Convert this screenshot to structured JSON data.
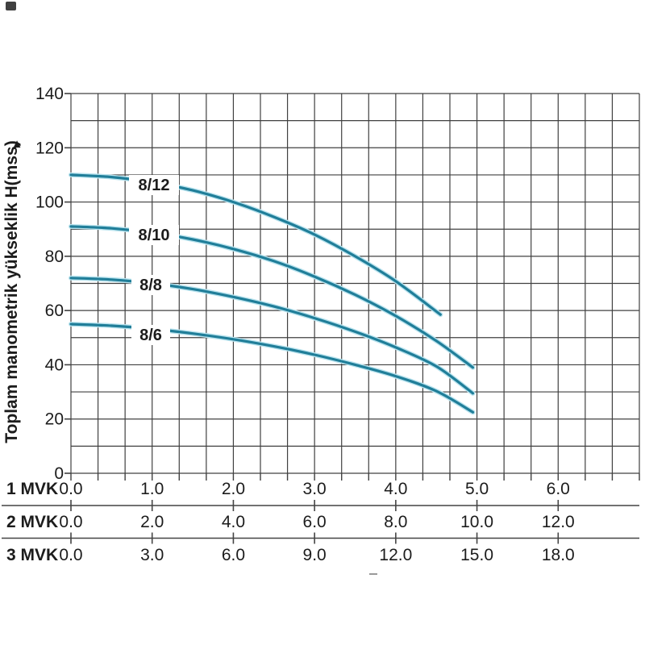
{
  "colors": {
    "background": "#ffffff",
    "grid": "#404040",
    "text": "#1c1c1c",
    "curve": "#207e99",
    "curve_halo": "#b9e3ee",
    "separator": "#444444"
  },
  "y_axis": {
    "title": "Toplam manometrik yükseklik H(mss)",
    "arrow_icon": "▲",
    "ticks": [
      0,
      20,
      40,
      60,
      80,
      100,
      120,
      140
    ]
  },
  "x_axes": [
    {
      "label": "1 MVK",
      "ticks": [
        "0.0",
        "1.0",
        "2.0",
        "3.0",
        "4.0",
        "5.0",
        "6.0"
      ]
    },
    {
      "label": "2 MVK",
      "ticks": [
        "0.0",
        "2.0",
        "4.0",
        "6.0",
        "8.0",
        "10.0",
        "12.0"
      ]
    },
    {
      "label": "3 MVK",
      "ticks": [
        "0.0",
        "3.0",
        "6.0",
        "9.0",
        "12.0",
        "15.0",
        "18.0"
      ]
    }
  ],
  "chart_data": {
    "type": "line",
    "title": "",
    "ylabel": "Toplam manometrik yükseklik H(mss)",
    "xlabel": "",
    "x_scale_labels": [
      "1 MVK",
      "2 MVK",
      "3 MVK"
    ],
    "ylim": [
      0,
      140
    ],
    "xlim_1mvk": [
      0,
      7
    ],
    "xlim_2mvk": [
      0,
      14
    ],
    "xlim_3mvk": [
      0,
      21
    ],
    "grid": true,
    "legend_position": "on-curve",
    "series": [
      {
        "name": "8/12",
        "points_q1mvk_h": [
          [
            0,
            110
          ],
          [
            0.5,
            109.2
          ],
          [
            1,
            107.3
          ],
          [
            1.5,
            104.3
          ],
          [
            2,
            100
          ],
          [
            2.5,
            94.5
          ],
          [
            3,
            88
          ],
          [
            3.5,
            80
          ],
          [
            4,
            70.8
          ],
          [
            4.55,
            58.5
          ]
        ]
      },
      {
        "name": "8/10",
        "points_q1mvk_h": [
          [
            0,
            91
          ],
          [
            0.5,
            90.3
          ],
          [
            1,
            88.7
          ],
          [
            1.5,
            86.2
          ],
          [
            2,
            82.7
          ],
          [
            2.5,
            78.2
          ],
          [
            3,
            72.5
          ],
          [
            3.5,
            65.8
          ],
          [
            4,
            58
          ],
          [
            4.5,
            48.8
          ],
          [
            4.95,
            39
          ]
        ]
      },
      {
        "name": "8/8",
        "points_q1mvk_h": [
          [
            0,
            72
          ],
          [
            0.5,
            71.4
          ],
          [
            1,
            70
          ],
          [
            1.5,
            67.9
          ],
          [
            2,
            65
          ],
          [
            2.5,
            61.5
          ],
          [
            3,
            57.2
          ],
          [
            3.5,
            52.2
          ],
          [
            4,
            46.4
          ],
          [
            4.5,
            39.4
          ],
          [
            4.95,
            29.5
          ]
        ]
      },
      {
        "name": "8/6",
        "points_q1mvk_h": [
          [
            0,
            55
          ],
          [
            0.5,
            54.4
          ],
          [
            1,
            53.2
          ],
          [
            1.5,
            51.5
          ],
          [
            2,
            49.4
          ],
          [
            2.5,
            46.8
          ],
          [
            3,
            43.7
          ],
          [
            3.5,
            40
          ],
          [
            4,
            35.8
          ],
          [
            4.5,
            30.3
          ],
          [
            4.95,
            22.5
          ]
        ]
      }
    ]
  }
}
